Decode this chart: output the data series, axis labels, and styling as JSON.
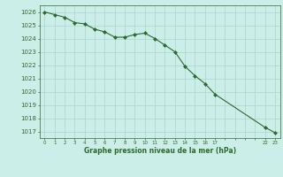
{
  "x_values": [
    0,
    1,
    2,
    3,
    4,
    5,
    6,
    7,
    8,
    9,
    10,
    11,
    12,
    13,
    14,
    15,
    16,
    17,
    22,
    23
  ],
  "y_values": [
    1026.0,
    1025.8,
    1025.6,
    1025.2,
    1025.1,
    1024.7,
    1024.5,
    1024.1,
    1024.1,
    1024.3,
    1024.4,
    1024.0,
    1023.5,
    1023.0,
    1021.9,
    1021.2,
    1020.6,
    1019.8,
    1017.3,
    1016.9
  ],
  "line_color": "#2d6a2d",
  "marker_color": "#2d6a2d",
  "bg_color": "#cceee8",
  "grid_color": "#aad4cc",
  "axis_label_color": "#2d6a2d",
  "tick_color": "#2d6a2d",
  "title": "Graphe pression niveau de la mer (hPa)",
  "ylim_min": 1016.5,
  "ylim_max": 1026.5,
  "yticks": [
    1017,
    1018,
    1019,
    1020,
    1021,
    1022,
    1023,
    1024,
    1025,
    1026
  ],
  "xtick_labels": [
    "0",
    "1",
    "2",
    "3",
    "4",
    "5",
    "6",
    "7",
    "8",
    "9",
    "10",
    "11",
    "12",
    "13",
    "14",
    "15",
    "16",
    "17",
    "",
    "",
    "",
    "",
    "22",
    "23"
  ],
  "xtick_positions": [
    0,
    1,
    2,
    3,
    4,
    5,
    6,
    7,
    8,
    9,
    10,
    11,
    12,
    13,
    14,
    15,
    16,
    17,
    18,
    19,
    20,
    21,
    22,
    23
  ]
}
